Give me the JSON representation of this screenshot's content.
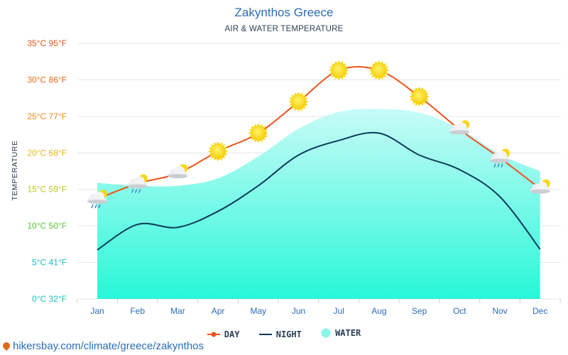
{
  "header": {
    "title": "Zakynthos Greece",
    "subtitle": "AIR & WATER TEMPERATURE"
  },
  "chart_data": {
    "type": "line",
    "ylabel": "TEMPERATURE",
    "ylim": [
      0,
      35
    ],
    "yticks": [
      {
        "value": 0,
        "label": "0°C 32°F",
        "color": "#19c6b8"
      },
      {
        "value": 5,
        "label": "5°C 41°F",
        "color": "#1bb8c0"
      },
      {
        "value": 10,
        "label": "10°C 50°F",
        "color": "#58c33a"
      },
      {
        "value": 15,
        "label": "15°C 59°F",
        "color": "#b8c81e"
      },
      {
        "value": 20,
        "label": "20°C 68°F",
        "color": "#e8b518"
      },
      {
        "value": 25,
        "label": "25°C 77°F",
        "color": "#ef8a17"
      },
      {
        "value": 30,
        "label": "30°C 86°F",
        "color": "#ec6a17"
      },
      {
        "value": 35,
        "label": "35°C 95°F",
        "color": "#e95319"
      }
    ],
    "categories": [
      "Jan",
      "Feb",
      "Mar",
      "Apr",
      "May",
      "Jun",
      "Jul",
      "Aug",
      "Sep",
      "Oct",
      "Nov",
      "Dec"
    ],
    "series": [
      {
        "name": "DAY",
        "color": "#f0521c",
        "values": [
          13.7,
          15.8,
          17.2,
          20.2,
          22.7,
          27.0,
          31.3,
          31.3,
          27.7,
          23.2,
          19.3,
          15.1
        ]
      },
      {
        "name": "NIGHT",
        "color": "#0e3a5a",
        "values": [
          6.7,
          10.2,
          9.8,
          12.0,
          15.5,
          19.7,
          21.7,
          22.7,
          19.7,
          17.7,
          14.0,
          6.8
        ]
      },
      {
        "name": "WATER",
        "color": "#8cf5ea",
        "values": [
          15.9,
          15.5,
          15.5,
          16.5,
          19.5,
          23.3,
          25.6,
          26.0,
          25.5,
          23.3,
          19.8,
          17.5
        ]
      }
    ],
    "weather_icons": [
      "cloud-rain-sun",
      "cloud-rain-sun",
      "cloud-sun",
      "sun",
      "sun",
      "sun",
      "sun",
      "sun",
      "sun",
      "cloud-sun",
      "cloud-rain-sun",
      "cloud-sun"
    ],
    "grid": true,
    "legend_position": "bottom-center"
  },
  "footer": {
    "source_text": "hikersbay.com/climate/greece/zakynthos"
  }
}
